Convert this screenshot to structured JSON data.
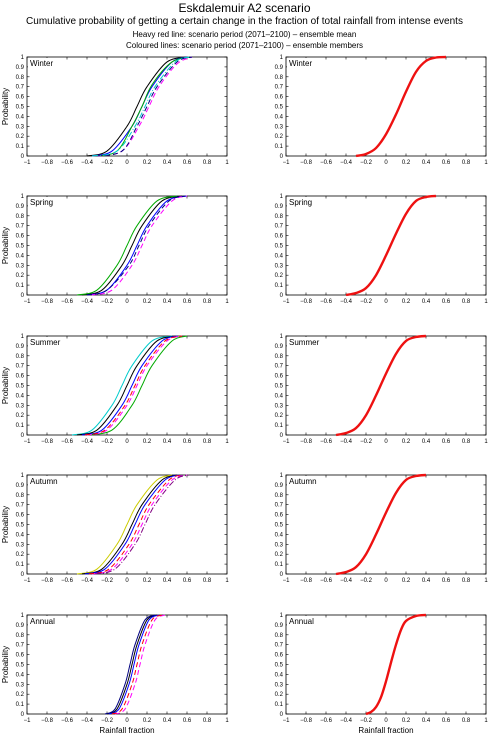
{
  "figure": {
    "title": "Eskdalemuir A2 scenario",
    "subtitle": "Cumulative probability of getting a certain change in the fraction of total rainfall from intense events",
    "note_mean": "Heavy red line: scenario period (2071–2100) – ensemble mean",
    "note_members": "Coloured lines: scenario period (2071–2100) – ensemble members"
  },
  "axes": {
    "ylabel": "Probability",
    "xlabel": "Rainfall fraction",
    "xlim": [
      -1,
      1
    ],
    "ylim": [
      0,
      1
    ],
    "xticks": [
      "−1",
      "−0.8",
      "−0.6",
      "−0.4",
      "−0.2",
      "0",
      "0.2",
      "0.4",
      "0.6",
      "0.8",
      "1"
    ],
    "yticks": [
      "0",
      "0.1",
      "0.2",
      "0.3",
      "0.4",
      "0.5",
      "0.6",
      "0.7",
      "0.8",
      "0.9",
      "1"
    ]
  },
  "colors": {
    "mean": "#ee1111",
    "members": [
      "#000000",
      "#0000ff",
      "#00aa00",
      "#ff00ff",
      "#00cccc",
      "#ff0000",
      "#cccc00",
      "#000080",
      "#800080"
    ]
  },
  "chart_data": [
    {
      "type": "line",
      "panel": "Winter ensemble members",
      "season": "Winter",
      "column": "members",
      "ylim": [
        0,
        1
      ],
      "xlim": [
        -1,
        1
      ],
      "series": [
        {
          "color": "#000000",
          "dash": "solid",
          "x": [
            -0.4,
            -0.2,
            0,
            0.1,
            0.2,
            0.4,
            0.6
          ],
          "y": [
            0,
            0.05,
            0.3,
            0.5,
            0.7,
            0.95,
            1
          ]
        },
        {
          "color": "#0000ff",
          "dash": "solid",
          "x": [
            -0.35,
            -0.15,
            0.05,
            0.15,
            0.25,
            0.45,
            0.6
          ],
          "y": [
            0,
            0.05,
            0.3,
            0.5,
            0.7,
            0.95,
            1
          ]
        },
        {
          "color": "#00aa00",
          "dash": "solid",
          "x": [
            -0.3,
            -0.1,
            0.05,
            0.15,
            0.25,
            0.45,
            0.65
          ],
          "y": [
            0,
            0.05,
            0.3,
            0.5,
            0.72,
            0.95,
            1
          ]
        },
        {
          "color": "#ff00ff",
          "dash": "dashed",
          "x": [
            -0.3,
            -0.05,
            0.12,
            0.22,
            0.32,
            0.5,
            0.65
          ],
          "y": [
            0,
            0.05,
            0.3,
            0.5,
            0.7,
            0.93,
            1
          ]
        },
        {
          "color": "#000080",
          "dash": "dashed",
          "x": [
            -0.3,
            -0.05,
            0.1,
            0.2,
            0.3,
            0.5,
            0.65
          ],
          "y": [
            0,
            0.05,
            0.3,
            0.5,
            0.7,
            0.95,
            1
          ]
        },
        {
          "color": "#00cccc",
          "dash": "dashdot",
          "x": [
            -0.35,
            -0.1,
            0.08,
            0.18,
            0.28,
            0.48,
            0.62
          ],
          "y": [
            0,
            0.05,
            0.3,
            0.5,
            0.7,
            0.95,
            1
          ]
        }
      ]
    },
    {
      "type": "line",
      "panel": "Winter ensemble mean",
      "season": "Winter",
      "column": "mean",
      "ylim": [
        0,
        1
      ],
      "xlim": [
        -1,
        1
      ],
      "series": [
        {
          "color": "#ee1111",
          "dash": "solid",
          "x": [
            -0.3,
            -0.2,
            -0.1,
            0,
            0.1,
            0.2,
            0.3,
            0.4,
            0.5,
            0.6
          ],
          "y": [
            0,
            0.02,
            0.08,
            0.22,
            0.42,
            0.65,
            0.85,
            0.96,
            0.995,
            1
          ]
        }
      ]
    },
    {
      "type": "line",
      "panel": "Spring ensemble members",
      "season": "Spring",
      "column": "members",
      "ylim": [
        0,
        1
      ],
      "xlim": [
        -1,
        1
      ],
      "series": [
        {
          "color": "#000000",
          "dash": "solid",
          "x": [
            -0.45,
            -0.25,
            -0.05,
            0.05,
            0.15,
            0.35,
            0.55
          ],
          "y": [
            0,
            0.05,
            0.3,
            0.5,
            0.7,
            0.95,
            1
          ]
        },
        {
          "color": "#00aa00",
          "dash": "solid",
          "x": [
            -0.5,
            -0.3,
            -0.1,
            0,
            0.1,
            0.3,
            0.5
          ],
          "y": [
            0,
            0.05,
            0.3,
            0.5,
            0.7,
            0.95,
            1
          ]
        },
        {
          "color": "#0000ff",
          "dash": "solid",
          "x": [
            -0.4,
            -0.2,
            0,
            0.1,
            0.2,
            0.4,
            0.6
          ],
          "y": [
            0,
            0.05,
            0.3,
            0.5,
            0.7,
            0.95,
            1
          ]
        },
        {
          "color": "#ff00ff",
          "dash": "dashed",
          "x": [
            -0.35,
            -0.15,
            0.05,
            0.15,
            0.25,
            0.45,
            0.6
          ],
          "y": [
            0,
            0.05,
            0.3,
            0.5,
            0.7,
            0.95,
            1
          ]
        },
        {
          "color": "#000080",
          "dash": "dashed",
          "x": [
            -0.4,
            -0.2,
            0.02,
            0.12,
            0.22,
            0.42,
            0.58
          ],
          "y": [
            0,
            0.05,
            0.3,
            0.5,
            0.7,
            0.95,
            1
          ]
        }
      ]
    },
    {
      "type": "line",
      "panel": "Spring ensemble mean",
      "season": "Spring",
      "column": "mean",
      "ylim": [
        0,
        1
      ],
      "xlim": [
        -1,
        1
      ],
      "series": [
        {
          "color": "#ee1111",
          "dash": "solid",
          "x": [
            -0.4,
            -0.3,
            -0.2,
            -0.1,
            0,
            0.1,
            0.2,
            0.3,
            0.4,
            0.5
          ],
          "y": [
            0,
            0.02,
            0.07,
            0.2,
            0.4,
            0.62,
            0.82,
            0.95,
            0.99,
            1
          ]
        }
      ]
    },
    {
      "type": "line",
      "panel": "Summer ensemble members",
      "season": "Summer",
      "column": "members",
      "ylim": [
        0,
        1
      ],
      "xlim": [
        -1,
        1
      ],
      "series": [
        {
          "color": "#00cccc",
          "dash": "solid",
          "x": [
            -0.55,
            -0.35,
            -0.15,
            -0.05,
            0.05,
            0.25,
            0.45
          ],
          "y": [
            0,
            0.05,
            0.3,
            0.5,
            0.7,
            0.95,
            1
          ]
        },
        {
          "color": "#000000",
          "dash": "solid",
          "x": [
            -0.5,
            -0.3,
            -0.1,
            0,
            0.1,
            0.3,
            0.5
          ],
          "y": [
            0,
            0.05,
            0.3,
            0.5,
            0.7,
            0.95,
            1
          ]
        },
        {
          "color": "#0000ff",
          "dash": "solid",
          "x": [
            -0.45,
            -0.25,
            -0.05,
            0.05,
            0.15,
            0.35,
            0.5
          ],
          "y": [
            0,
            0.05,
            0.3,
            0.5,
            0.7,
            0.95,
            1
          ]
        },
        {
          "color": "#00aa00",
          "dash": "solid",
          "x": [
            -0.4,
            -0.15,
            0.05,
            0.15,
            0.25,
            0.45,
            0.6
          ],
          "y": [
            0,
            0.05,
            0.3,
            0.5,
            0.7,
            0.95,
            1
          ]
        },
        {
          "color": "#ff00ff",
          "dash": "dashed",
          "x": [
            -0.4,
            -0.2,
            0,
            0.1,
            0.2,
            0.4,
            0.55
          ],
          "y": [
            0,
            0.05,
            0.3,
            0.5,
            0.7,
            0.95,
            1
          ]
        },
        {
          "color": "#ff0000",
          "dash": "dashed",
          "x": [
            -0.42,
            -0.22,
            -0.02,
            0.08,
            0.18,
            0.38,
            0.55
          ],
          "y": [
            0,
            0.05,
            0.3,
            0.5,
            0.7,
            0.95,
            1
          ]
        }
      ]
    },
    {
      "type": "line",
      "panel": "Summer ensemble mean",
      "season": "Summer",
      "column": "mean",
      "ylim": [
        0,
        1
      ],
      "xlim": [
        -1,
        1
      ],
      "series": [
        {
          "color": "#ee1111",
          "dash": "solid",
          "x": [
            -0.5,
            -0.4,
            -0.3,
            -0.2,
            -0.1,
            0,
            0.1,
            0.2,
            0.3,
            0.4
          ],
          "y": [
            0,
            0.02,
            0.07,
            0.2,
            0.4,
            0.62,
            0.82,
            0.95,
            0.99,
            1
          ]
        }
      ]
    },
    {
      "type": "line",
      "panel": "Autumn ensemble members",
      "season": "Autumn",
      "column": "members",
      "ylim": [
        0,
        1
      ],
      "xlim": [
        -1,
        1
      ],
      "series": [
        {
          "color": "#cccc00",
          "dash": "solid",
          "x": [
            -0.5,
            -0.3,
            -0.1,
            0,
            0.1,
            0.3,
            0.45
          ],
          "y": [
            0,
            0.05,
            0.3,
            0.5,
            0.7,
            0.95,
            1
          ]
        },
        {
          "color": "#000000",
          "dash": "solid",
          "x": [
            -0.45,
            -0.25,
            -0.05,
            0.05,
            0.15,
            0.35,
            0.5
          ],
          "y": [
            0,
            0.05,
            0.3,
            0.5,
            0.7,
            0.95,
            1
          ]
        },
        {
          "color": "#0000ff",
          "dash": "solid",
          "x": [
            -0.42,
            -0.22,
            -0.02,
            0.08,
            0.18,
            0.38,
            0.52
          ],
          "y": [
            0,
            0.05,
            0.3,
            0.5,
            0.7,
            0.95,
            1
          ]
        },
        {
          "color": "#ff00ff",
          "dash": "dashed",
          "x": [
            -0.35,
            -0.15,
            0.05,
            0.15,
            0.25,
            0.45,
            0.6
          ],
          "y": [
            0,
            0.05,
            0.3,
            0.5,
            0.7,
            0.95,
            1
          ]
        },
        {
          "color": "#ff0000",
          "dash": "dashed",
          "x": [
            -0.38,
            -0.18,
            0.02,
            0.12,
            0.22,
            0.42,
            0.55
          ],
          "y": [
            0,
            0.05,
            0.3,
            0.5,
            0.7,
            0.95,
            1
          ]
        },
        {
          "color": "#800080",
          "dash": "dashdot",
          "x": [
            -0.32,
            -0.12,
            0.08,
            0.18,
            0.28,
            0.48,
            0.62
          ],
          "y": [
            0,
            0.05,
            0.3,
            0.5,
            0.7,
            0.95,
            1
          ]
        }
      ]
    },
    {
      "type": "line",
      "panel": "Autumn ensemble mean",
      "season": "Autumn",
      "column": "mean",
      "ylim": [
        0,
        1
      ],
      "xlim": [
        -1,
        1
      ],
      "series": [
        {
          "color": "#ee1111",
          "dash": "solid",
          "x": [
            -0.5,
            -0.4,
            -0.3,
            -0.2,
            -0.1,
            0,
            0.1,
            0.2,
            0.3,
            0.4
          ],
          "y": [
            0,
            0.02,
            0.07,
            0.2,
            0.4,
            0.62,
            0.82,
            0.95,
            0.99,
            1
          ]
        }
      ]
    },
    {
      "type": "line",
      "panel": "Annual ensemble members",
      "season": "Annual",
      "column": "members",
      "ylim": [
        0,
        1
      ],
      "xlim": [
        -1,
        1
      ],
      "series": [
        {
          "color": "#000000",
          "dash": "solid",
          "x": [
            -0.2,
            -0.1,
            0,
            0.05,
            0.1,
            0.2,
            0.3
          ],
          "y": [
            0,
            0.05,
            0.3,
            0.5,
            0.7,
            0.95,
            1
          ]
        },
        {
          "color": "#0000ff",
          "dash": "solid",
          "x": [
            -0.18,
            -0.08,
            0.02,
            0.07,
            0.12,
            0.22,
            0.32
          ],
          "y": [
            0,
            0.05,
            0.3,
            0.5,
            0.7,
            0.95,
            1
          ]
        },
        {
          "color": "#000080",
          "dash": "solid",
          "x": [
            -0.22,
            -0.12,
            -0.02,
            0.03,
            0.08,
            0.18,
            0.28
          ],
          "y": [
            0,
            0.05,
            0.3,
            0.5,
            0.7,
            0.95,
            1
          ]
        },
        {
          "color": "#ff00ff",
          "dash": "dashed",
          "x": [
            -0.12,
            -0.02,
            0.08,
            0.13,
            0.18,
            0.28,
            0.38
          ],
          "y": [
            0,
            0.05,
            0.3,
            0.5,
            0.7,
            0.95,
            1
          ]
        },
        {
          "color": "#ff0000",
          "dash": "dashed",
          "x": [
            -0.15,
            -0.05,
            0.05,
            0.1,
            0.15,
            0.25,
            0.35
          ],
          "y": [
            0,
            0.05,
            0.3,
            0.5,
            0.7,
            0.95,
            1
          ]
        }
      ]
    },
    {
      "type": "line",
      "panel": "Annual ensemble mean",
      "season": "Annual",
      "column": "mean",
      "ylim": [
        0,
        1
      ],
      "xlim": [
        -1,
        1
      ],
      "series": [
        {
          "color": "#ee1111",
          "dash": "solid",
          "x": [
            -0.2,
            -0.15,
            -0.1,
            -0.05,
            0,
            0.05,
            0.1,
            0.15,
            0.2,
            0.3,
            0.4
          ],
          "y": [
            0,
            0.02,
            0.07,
            0.17,
            0.33,
            0.52,
            0.7,
            0.85,
            0.94,
            0.99,
            1
          ]
        }
      ]
    }
  ]
}
